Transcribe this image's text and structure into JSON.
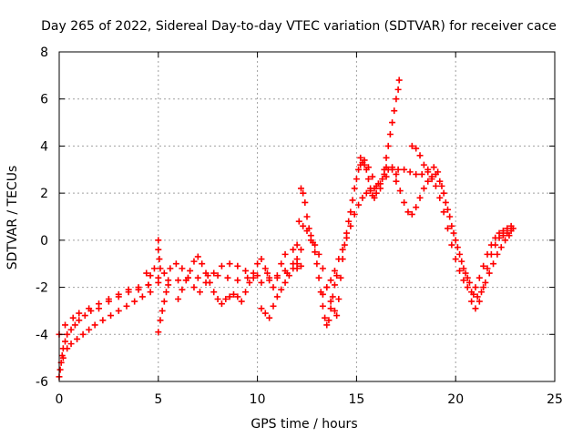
{
  "chart_data": {
    "type": "scatter",
    "title": "Day 265 of 2022, Sidereal Day-to-day VTEC variation (SDTVAR) for receiver cace",
    "xlabel": "GPS time / hours",
    "ylabel": "SDTVAR / TECUs",
    "xlim": [
      0,
      25
    ],
    "ylim": [
      -6,
      8
    ],
    "x_ticks": [
      "0",
      "5",
      "10",
      "15",
      "20",
      "25"
    ],
    "y_ticks": [
      "-6",
      "-4",
      "-2",
      "0",
      "2",
      "4",
      "6",
      "8"
    ],
    "grid": true,
    "marker": "+",
    "colors": {
      "series": "#ff0000",
      "grid": "#a0a0a0",
      "axis": "#000000"
    },
    "series": [
      {
        "points": [
          [
            0.0,
            -5.8
          ],
          [
            0.05,
            -5.5
          ],
          [
            0.1,
            -5.2
          ],
          [
            0.15,
            -4.9
          ],
          [
            0.2,
            -4.6
          ],
          [
            0.3,
            -4.3
          ],
          [
            0.4,
            -4.0
          ],
          [
            0.6,
            -3.8
          ],
          [
            0.8,
            -3.6
          ],
          [
            1.0,
            -3.4
          ],
          [
            1.3,
            -3.2
          ],
          [
            1.6,
            -3.0
          ],
          [
            2.0,
            -2.9
          ],
          [
            2.5,
            -2.6
          ],
          [
            3.0,
            -2.4
          ],
          [
            3.5,
            -2.2
          ],
          [
            4.0,
            -2.1
          ],
          [
            4.5,
            -1.9
          ],
          [
            5.0,
            -1.8
          ],
          [
            5.5,
            -1.7
          ],
          [
            6.0,
            -1.7
          ],
          [
            6.5,
            -1.6
          ],
          [
            7.0,
            -1.6
          ],
          [
            7.5,
            -1.5
          ],
          [
            8.0,
            -1.5
          ],
          [
            8.5,
            -1.6
          ],
          [
            9.0,
            -1.7
          ],
          [
            9.5,
            -1.6
          ],
          [
            10.0,
            -1.5
          ],
          [
            10.5,
            -1.4
          ],
          [
            11.0,
            -1.5
          ],
          [
            11.5,
            -1.4
          ],
          [
            12.0,
            -1.2
          ],
          [
            0.0,
            -4.0
          ],
          [
            0.3,
            -3.6
          ],
          [
            0.7,
            -3.3
          ],
          [
            1.0,
            -3.1
          ],
          [
            1.5,
            -2.9
          ],
          [
            2.0,
            -2.7
          ],
          [
            2.5,
            -2.5
          ],
          [
            3.0,
            -2.3
          ],
          [
            3.5,
            -2.1
          ],
          [
            4.0,
            -2.0
          ],
          [
            4.5,
            -1.9
          ],
          [
            5.0,
            -1.6
          ],
          [
            5.3,
            -1.4
          ],
          [
            5.6,
            -1.2
          ],
          [
            5.9,
            -1.0
          ],
          [
            6.2,
            -1.2
          ],
          [
            6.5,
            -1.6
          ],
          [
            6.8,
            -2.0
          ],
          [
            7.1,
            -2.2
          ],
          [
            7.4,
            -1.8
          ],
          [
            7.8,
            -1.4
          ],
          [
            8.2,
            -1.1
          ],
          [
            8.6,
            -1.0
          ],
          [
            9.0,
            -1.1
          ],
          [
            9.4,
            -1.3
          ],
          [
            9.8,
            -1.6
          ],
          [
            10.2,
            -1.8
          ],
          [
            10.6,
            -1.7
          ],
          [
            11.0,
            -1.6
          ],
          [
            11.4,
            -1.3
          ],
          [
            11.8,
            -1.0
          ],
          [
            12.0,
            -0.8
          ],
          [
            0.2,
            -5.0
          ],
          [
            0.4,
            -4.6
          ],
          [
            0.6,
            -4.4
          ],
          [
            0.9,
            -4.2
          ],
          [
            1.2,
            -4.0
          ],
          [
            1.5,
            -3.8
          ],
          [
            1.8,
            -3.6
          ],
          [
            2.2,
            -3.4
          ],
          [
            2.6,
            -3.2
          ],
          [
            3.0,
            -3.0
          ],
          [
            3.4,
            -2.8
          ],
          [
            3.8,
            -2.6
          ],
          [
            4.2,
            -2.4
          ],
          [
            4.6,
            -2.2
          ],
          [
            5.0,
            -3.9
          ],
          [
            5.1,
            -3.4
          ],
          [
            5.2,
            -3.0
          ],
          [
            5.3,
            -2.6
          ],
          [
            5.4,
            -2.2
          ],
          [
            5.5,
            -1.9
          ],
          [
            5.0,
            0.0
          ],
          [
            5.0,
            -0.4
          ],
          [
            5.05,
            -0.8
          ],
          [
            5.1,
            -1.2
          ],
          [
            4.8,
            -1.2
          ],
          [
            4.6,
            -1.5
          ],
          [
            4.4,
            -1.4
          ],
          [
            6.0,
            -2.5
          ],
          [
            6.2,
            -2.1
          ],
          [
            6.4,
            -1.7
          ],
          [
            6.6,
            -1.3
          ],
          [
            6.8,
            -0.9
          ],
          [
            7.0,
            -0.7
          ],
          [
            7.2,
            -1.0
          ],
          [
            7.4,
            -1.4
          ],
          [
            7.6,
            -1.8
          ],
          [
            7.8,
            -2.2
          ],
          [
            8.0,
            -2.5
          ],
          [
            8.2,
            -2.7
          ],
          [
            8.4,
            -2.5
          ],
          [
            8.6,
            -2.4
          ],
          [
            8.8,
            -2.3
          ],
          [
            9.0,
            -2.4
          ],
          [
            9.2,
            -2.6
          ],
          [
            9.4,
            -2.2
          ],
          [
            9.6,
            -1.8
          ],
          [
            9.8,
            -1.4
          ],
          [
            10.0,
            -1.0
          ],
          [
            10.2,
            -0.8
          ],
          [
            10.4,
            -1.2
          ],
          [
            10.6,
            -1.6
          ],
          [
            10.8,
            -2.0
          ],
          [
            11.0,
            -2.4
          ],
          [
            11.2,
            -2.1
          ],
          [
            11.4,
            -1.8
          ],
          [
            11.6,
            -1.5
          ],
          [
            11.8,
            -1.2
          ],
          [
            12.0,
            -1.0
          ],
          [
            12.2,
            -0.4
          ],
          [
            10.2,
            -2.9
          ],
          [
            10.4,
            -3.1
          ],
          [
            10.6,
            -3.3
          ],
          [
            10.8,
            -2.8
          ],
          [
            11.2,
            -1.0
          ],
          [
            11.4,
            -0.6
          ],
          [
            11.8,
            -0.4
          ],
          [
            12.0,
            -0.2
          ],
          [
            12.2,
            -1.1
          ],
          [
            12.2,
            2.2
          ],
          [
            12.3,
            2.0
          ],
          [
            12.4,
            1.6
          ],
          [
            12.5,
            1.0
          ],
          [
            12.6,
            0.5
          ],
          [
            12.7,
            0.2
          ],
          [
            12.8,
            -0.1
          ],
          [
            12.9,
            -0.5
          ],
          [
            13.0,
            -1.0
          ],
          [
            13.1,
            -1.6
          ],
          [
            13.2,
            -2.2
          ],
          [
            13.3,
            -2.8
          ],
          [
            13.4,
            -3.3
          ],
          [
            13.5,
            -3.6
          ],
          [
            13.6,
            -3.4
          ],
          [
            13.7,
            -2.9
          ],
          [
            13.8,
            -2.4
          ],
          [
            13.9,
            -1.9
          ],
          [
            14.0,
            -1.5
          ],
          [
            12.1,
            0.8
          ],
          [
            12.3,
            0.6
          ],
          [
            12.5,
            0.4
          ],
          [
            12.7,
            0.0
          ],
          [
            12.9,
            -0.2
          ],
          [
            13.1,
            -0.6
          ],
          [
            13.3,
            -1.2
          ],
          [
            13.5,
            -2.0
          ],
          [
            13.7,
            -2.6
          ],
          [
            13.9,
            -3.0
          ],
          [
            14.0,
            -3.2
          ],
          [
            14.1,
            -2.5
          ],
          [
            14.2,
            -1.6
          ],
          [
            14.3,
            -0.8
          ],
          [
            14.4,
            -0.2
          ],
          [
            14.5,
            0.3
          ],
          [
            14.6,
            0.8
          ],
          [
            14.7,
            1.2
          ],
          [
            14.8,
            1.7
          ],
          [
            14.9,
            2.2
          ],
          [
            15.0,
            2.6
          ],
          [
            15.1,
            3.0
          ],
          [
            15.2,
            3.2
          ],
          [
            15.3,
            3.3
          ],
          [
            15.4,
            3.2
          ],
          [
            15.5,
            3.0
          ],
          [
            15.6,
            2.6
          ],
          [
            15.7,
            2.2
          ],
          [
            15.8,
            1.9
          ],
          [
            15.9,
            1.8
          ],
          [
            16.0,
            2.0
          ],
          [
            16.2,
            2.4
          ],
          [
            16.4,
            2.8
          ],
          [
            16.6,
            3.0
          ],
          [
            16.8,
            3.0
          ],
          [
            17.0,
            2.8
          ],
          [
            13.3,
            -2.3
          ],
          [
            13.5,
            -2.0
          ],
          [
            13.7,
            -1.7
          ],
          [
            13.9,
            -1.3
          ],
          [
            14.1,
            -0.8
          ],
          [
            14.3,
            -0.4
          ],
          [
            14.5,
            0.1
          ],
          [
            14.7,
            0.6
          ],
          [
            14.9,
            1.1
          ],
          [
            15.1,
            1.5
          ],
          [
            15.3,
            1.8
          ],
          [
            15.5,
            2.0
          ],
          [
            15.7,
            2.1
          ],
          [
            15.9,
            2.2
          ],
          [
            16.1,
            2.4
          ],
          [
            16.3,
            2.6
          ],
          [
            16.5,
            2.7
          ],
          [
            15.2,
            3.5
          ],
          [
            15.4,
            3.4
          ],
          [
            15.6,
            3.1
          ],
          [
            15.8,
            2.7
          ],
          [
            16.0,
            2.3
          ],
          [
            16.2,
            2.2
          ],
          [
            16.4,
            3.0
          ],
          [
            16.5,
            3.5
          ],
          [
            16.6,
            4.0
          ],
          [
            16.7,
            4.5
          ],
          [
            16.8,
            5.0
          ],
          [
            16.9,
            5.5
          ],
          [
            17.0,
            6.0
          ],
          [
            17.1,
            6.4
          ],
          [
            17.15,
            6.8
          ],
          [
            17.0,
            2.5
          ],
          [
            17.2,
            2.1
          ],
          [
            17.4,
            1.6
          ],
          [
            17.6,
            1.2
          ],
          [
            17.8,
            1.1
          ],
          [
            18.0,
            1.4
          ],
          [
            18.2,
            1.8
          ],
          [
            18.4,
            2.2
          ],
          [
            18.6,
            2.5
          ],
          [
            18.8,
            2.6
          ],
          [
            19.0,
            2.3
          ],
          [
            19.2,
            1.8
          ],
          [
            19.4,
            1.2
          ],
          [
            19.6,
            0.5
          ],
          [
            19.8,
            -0.2
          ],
          [
            20.0,
            -0.8
          ],
          [
            20.2,
            -1.3
          ],
          [
            20.4,
            -1.7
          ],
          [
            20.6,
            -2.0
          ],
          [
            20.8,
            -2.2
          ],
          [
            21.0,
            -2.0
          ],
          [
            21.2,
            -1.6
          ],
          [
            21.4,
            -1.1
          ],
          [
            21.6,
            -0.6
          ],
          [
            21.8,
            -0.2
          ],
          [
            22.0,
            0.1
          ],
          [
            22.2,
            0.3
          ],
          [
            22.4,
            0.4
          ],
          [
            22.6,
            0.5
          ],
          [
            22.8,
            0.6
          ],
          [
            17.8,
            4.0
          ],
          [
            18.0,
            3.9
          ],
          [
            18.2,
            3.6
          ],
          [
            18.4,
            3.2
          ],
          [
            18.6,
            2.9
          ],
          [
            18.8,
            2.7
          ],
          [
            19.0,
            2.8
          ],
          [
            19.2,
            2.5
          ],
          [
            19.4,
            2.0
          ],
          [
            19.6,
            1.3
          ],
          [
            19.8,
            0.6
          ],
          [
            20.0,
            0.0
          ],
          [
            20.2,
            -0.6
          ],
          [
            20.4,
            -1.2
          ],
          [
            20.6,
            -1.6
          ],
          [
            20.8,
            -2.6
          ],
          [
            21.0,
            -2.9
          ],
          [
            21.2,
            -2.6
          ],
          [
            21.4,
            -2.0
          ],
          [
            21.6,
            -1.2
          ],
          [
            21.8,
            -0.6
          ],
          [
            22.0,
            -0.2
          ],
          [
            22.2,
            0.1
          ],
          [
            22.4,
            0.2
          ],
          [
            22.6,
            0.3
          ],
          [
            22.8,
            0.4
          ],
          [
            16.5,
            3.1
          ],
          [
            16.8,
            3.1
          ],
          [
            17.1,
            3.0
          ],
          [
            17.4,
            3.0
          ],
          [
            17.7,
            2.9
          ],
          [
            18.0,
            2.8
          ],
          [
            18.3,
            2.8
          ],
          [
            18.6,
            3.0
          ],
          [
            18.9,
            3.1
          ],
          [
            19.1,
            2.9
          ],
          [
            19.3,
            2.3
          ],
          [
            19.5,
            1.6
          ],
          [
            19.7,
            1.0
          ],
          [
            19.9,
            0.3
          ],
          [
            20.1,
            -0.3
          ],
          [
            20.3,
            -0.9
          ],
          [
            20.5,
            -1.4
          ],
          [
            20.7,
            -1.8
          ],
          [
            20.9,
            -2.3
          ],
          [
            21.1,
            -2.4
          ],
          [
            21.3,
            -2.2
          ],
          [
            21.5,
            -1.8
          ],
          [
            21.7,
            -1.4
          ],
          [
            21.9,
            -1.0
          ],
          [
            22.1,
            -0.6
          ],
          [
            22.3,
            -0.3
          ],
          [
            22.5,
            0.0
          ],
          [
            22.7,
            0.2
          ],
          [
            22.9,
            0.5
          ]
        ]
      }
    ]
  }
}
